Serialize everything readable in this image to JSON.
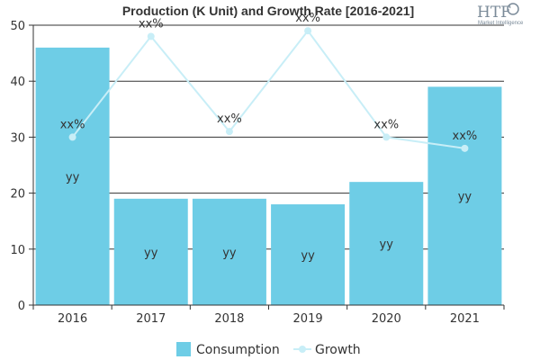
{
  "logo": {
    "name": "HTF",
    "tagline": "Market Intelligence"
  },
  "colors": {
    "bar": "#6ecde6",
    "line": "#c8eef7",
    "marker": "#c8eef7",
    "axis": "#333333",
    "grid": "#333333"
  },
  "chart_data": {
    "type": "bar",
    "title": "Production (K Unit) and Growth Rate [2016-2021]",
    "xlabel": "",
    "ylabel": "",
    "categories": [
      "2016",
      "2017",
      "2018",
      "2019",
      "2020",
      "2021"
    ],
    "ylim": [
      0,
      50
    ],
    "yticks": [
      0,
      10,
      20,
      30,
      40,
      50
    ],
    "grid": true,
    "legend_position": "bottom",
    "series": [
      {
        "name": "Consumption",
        "type": "bar",
        "values": [
          46,
          19,
          19,
          18,
          22,
          39
        ],
        "labels": [
          "yy",
          "yy",
          "yy",
          "yy",
          "yy",
          "yy"
        ]
      },
      {
        "name": "Growth",
        "type": "line",
        "values": [
          30,
          48,
          31,
          49,
          30,
          28
        ],
        "labels": [
          "xx%",
          "xx%",
          "xx%",
          "xx%",
          "xx%",
          "xx%"
        ]
      }
    ]
  }
}
